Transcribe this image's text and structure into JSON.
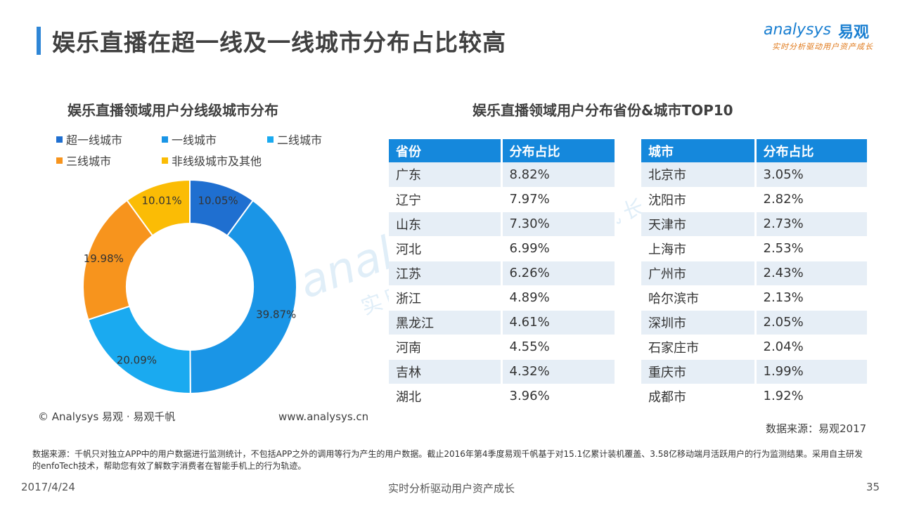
{
  "header": {
    "title": "娱乐直播在超一线及一线城市分布占比较高"
  },
  "logo": {
    "main_text": "analysys",
    "cn_text": "易观",
    "sub_text": "实时分析驱动用户资产成长",
    "color": "#1a7fd1",
    "sub_color": "#e07a1c"
  },
  "watermark": {
    "main_text": "analysys 易观",
    "sub_text": "实时分析驱动用户资产成长"
  },
  "left_panel": {
    "title": "娱乐直播领域用户分线级城市分布"
  },
  "chart_data": {
    "type": "pie",
    "title": "娱乐直播领域用户分线级城市分布",
    "legend_position": "top",
    "categories": [
      "超一线城市",
      "一线城市",
      "二线城市",
      "三线城市",
      "非线级城市及其他"
    ],
    "values": [
      10.05,
      39.87,
      20.09,
      19.98,
      10.01
    ],
    "labels": [
      "10.05%",
      "39.87%",
      "20.09%",
      "19.98%",
      "10.01%"
    ],
    "colors": [
      "#1f6fd0",
      "#1a95e6",
      "#1aaaf0",
      "#f7941d",
      "#fbbc05"
    ],
    "donut": true
  },
  "right_panel": {
    "title": "娱乐直播领域用户分布省份&城市TOP10"
  },
  "province_table": {
    "headers": [
      "省份",
      "分布占比"
    ],
    "rows": [
      [
        "广东",
        "8.82%"
      ],
      [
        "辽宁",
        "7.97%"
      ],
      [
        "山东",
        "7.30%"
      ],
      [
        "河北",
        "6.99%"
      ],
      [
        "江苏",
        "6.26%"
      ],
      [
        "浙江",
        "4.89%"
      ],
      [
        "黑龙江",
        "4.61%"
      ],
      [
        "河南",
        "4.55%"
      ],
      [
        "吉林",
        "4.32%"
      ],
      [
        "湖北",
        "3.96%"
      ]
    ]
  },
  "city_table": {
    "headers": [
      "城市",
      "分布占比"
    ],
    "rows": [
      [
        "北京市",
        "3.05%"
      ],
      [
        "沈阳市",
        "2.82%"
      ],
      [
        "天津市",
        "2.73%"
      ],
      [
        "上海市",
        "2.53%"
      ],
      [
        "广州市",
        "2.43%"
      ],
      [
        "哈尔滨市",
        "2.13%"
      ],
      [
        "深圳市",
        "2.05%"
      ],
      [
        "石家庄市",
        "2.04%"
      ],
      [
        "重庆市",
        "1.99%"
      ],
      [
        "成都市",
        "1.92%"
      ]
    ]
  },
  "footer": {
    "copyright": "© Analysys 易观 · 易观千帆",
    "website": "www.analysys.cn",
    "source": "数据来源：易观2017",
    "note": "数据来源：千帆只对独立APP中的用户数据进行监测统计，不包括APP之外的调用等行为产生的用户数据。截止2016年第4季度易观千帆基于对15.1亿累计装机覆盖、3.58亿移动端月活跃用户的行为监测结果。采用自主研发的enfoTech技术，帮助您有效了解数字消费者在智能手机上的行为轨迹。",
    "date": "2017/4/24",
    "slogan": "实时分析驱动用户资产成长",
    "page": "35"
  },
  "theme": {
    "accent": "#2f86d6",
    "table_header": "#1588dc",
    "table_stripe": "#e6eef6"
  }
}
